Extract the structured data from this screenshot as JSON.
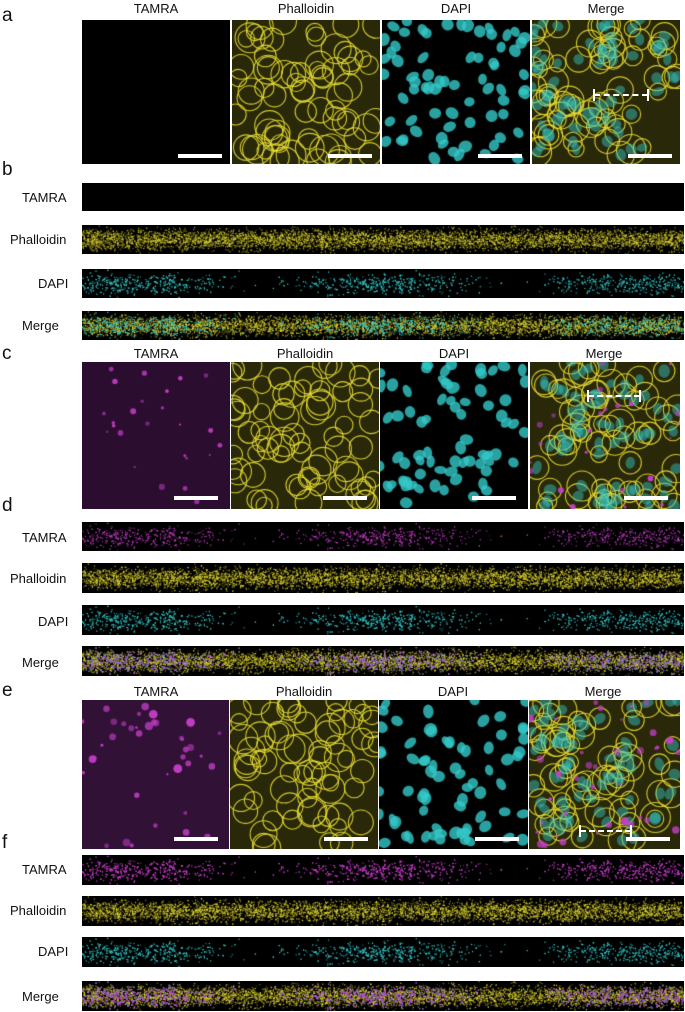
{
  "figure": {
    "panels": [
      {
        "id": "a",
        "type": "image-row",
        "columns": [
          "TAMRA",
          "Phalloidin",
          "DAPI",
          "Merge"
        ],
        "show_column_labels": true,
        "tamra_level": 0.02,
        "has_region_marker": true
      },
      {
        "id": "b",
        "type": "strip-stack",
        "rows": [
          "TAMRA",
          "Phalloidin",
          "DAPI",
          "Merge"
        ],
        "tamra_level": 0.02
      },
      {
        "id": "c",
        "type": "image-row",
        "columns": [
          "TAMRA",
          "Phalloidin",
          "DAPI",
          "Merge"
        ],
        "show_column_labels": true,
        "tamra_level": 0.55,
        "has_region_marker": true
      },
      {
        "id": "d",
        "type": "strip-stack",
        "rows": [
          "TAMRA",
          "Phalloidin",
          "DAPI",
          "Merge"
        ],
        "tamra_level": 0.55
      },
      {
        "id": "e",
        "type": "image-row",
        "columns": [
          "TAMRA",
          "Phalloidin",
          "DAPI",
          "Merge"
        ],
        "show_column_labels": true,
        "tamra_level": 0.85,
        "has_region_marker": true
      },
      {
        "id": "f",
        "type": "strip-stack",
        "rows": [
          "TAMRA",
          "Phalloidin",
          "DAPI",
          "Merge"
        ],
        "tamra_level": 0.85
      }
    ],
    "channel_colors": {
      "TAMRA": "#c63fc9",
      "Phalloidin": "#e6dc33",
      "DAPI": "#35c9c9",
      "background": "#000000",
      "scalebar": "#ffffff"
    }
  }
}
